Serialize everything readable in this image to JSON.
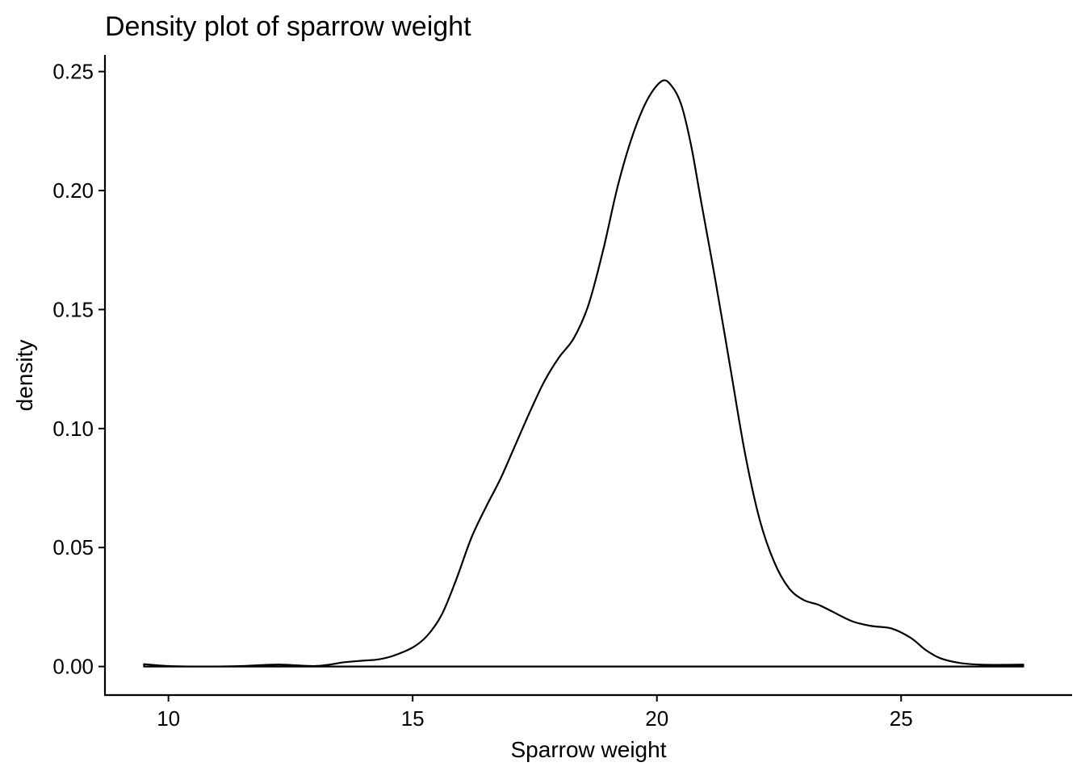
{
  "chart_data": {
    "type": "area",
    "title": "Density plot of sparrow weight",
    "xlabel": "Sparrow weight",
    "ylabel": "density",
    "xlim": [
      8.7,
      28.5
    ],
    "ylim": [
      -0.012,
      0.257
    ],
    "x_ticks": [
      10,
      15,
      20,
      25
    ],
    "x_tick_labels": [
      "10",
      "15",
      "20",
      "25"
    ],
    "y_ticks": [
      0.0,
      0.05,
      0.1,
      0.15,
      0.2,
      0.25
    ],
    "y_tick_labels": [
      "0.00",
      "0.05",
      "0.10",
      "0.15",
      "0.20",
      "0.25"
    ],
    "grid": false,
    "fill": "none",
    "line_color": "#000000",
    "series": [
      {
        "x": [
          9.5,
          10.0,
          10.5,
          11.0,
          11.5,
          12.0,
          12.3,
          12.7,
          13.0,
          13.3,
          13.6,
          14.0,
          14.3,
          14.6,
          15.0,
          15.3,
          15.6,
          15.9,
          16.2,
          16.5,
          16.8,
          17.1,
          17.4,
          17.7,
          18.0,
          18.3,
          18.6,
          18.9,
          19.2,
          19.5,
          19.8,
          20.1,
          20.3,
          20.5,
          20.7,
          20.9,
          21.2,
          21.5,
          21.8,
          22.1,
          22.4,
          22.7,
          23.0,
          23.3,
          23.6,
          24.0,
          24.4,
          24.8,
          25.2,
          25.5,
          25.8,
          26.2,
          26.6,
          27.0,
          27.5
        ],
        "y": [
          0.001,
          0.0002,
          0.0,
          0.0,
          0.0002,
          0.0007,
          0.0008,
          0.0004,
          0.0002,
          0.0008,
          0.0018,
          0.0025,
          0.003,
          0.0045,
          0.008,
          0.013,
          0.022,
          0.037,
          0.054,
          0.067,
          0.079,
          0.093,
          0.107,
          0.12,
          0.13,
          0.138,
          0.152,
          0.175,
          0.202,
          0.223,
          0.238,
          0.246,
          0.244,
          0.236,
          0.219,
          0.196,
          0.162,
          0.126,
          0.09,
          0.062,
          0.044,
          0.033,
          0.028,
          0.026,
          0.023,
          0.019,
          0.017,
          0.016,
          0.012,
          0.007,
          0.0035,
          0.0015,
          0.0008,
          0.0007,
          0.0008
        ]
      }
    ]
  }
}
